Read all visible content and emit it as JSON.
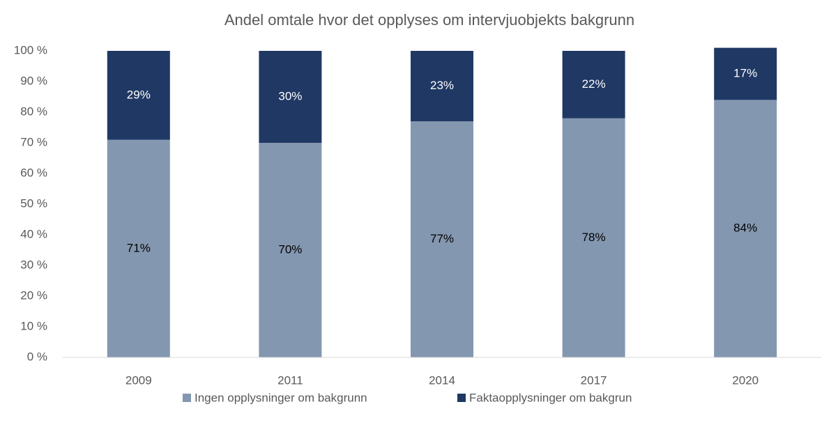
{
  "chart_data": {
    "type": "stacked_bar",
    "title": "Andel omtale hvor det opplyses om intervjuobjekts bakgrunn",
    "categories": [
      "2009",
      "2011",
      "2014",
      "2017",
      "2020"
    ],
    "series": [
      {
        "name": "Ingen opplysninger om bakgrunn",
        "color": "#8497b0",
        "values": [
          71,
          70,
          77,
          78,
          84
        ],
        "value_labels": [
          "71%",
          "70%",
          "77%",
          "78%",
          "84%"
        ]
      },
      {
        "name": "Faktaopplysninger om bakgrun",
        "color": "#203864",
        "values": [
          29,
          30,
          23,
          22,
          17
        ],
        "value_labels": [
          "29%",
          "30%",
          "23%",
          "22%",
          "17%"
        ]
      }
    ],
    "ylim": [
      0,
      100
    ],
    "yticks": [
      {
        "value": 0,
        "label": "0 %"
      },
      {
        "value": 10,
        "label": "10 %"
      },
      {
        "value": 20,
        "label": "20 %"
      },
      {
        "value": 30,
        "label": "30 %"
      },
      {
        "value": 40,
        "label": "40 %"
      },
      {
        "value": 50,
        "label": "50 %"
      },
      {
        "value": 60,
        "label": "60 %"
      },
      {
        "value": 70,
        "label": "70 %"
      },
      {
        "value": 80,
        "label": "80 %"
      },
      {
        "value": 90,
        "label": "90 %"
      },
      {
        "value": 100,
        "label": "100 %"
      }
    ],
    "grid": false,
    "legend": "bottom"
  }
}
